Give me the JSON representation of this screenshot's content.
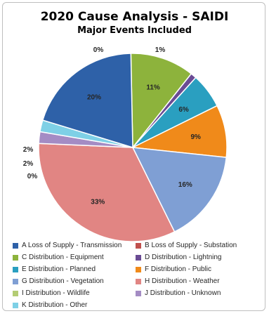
{
  "chart_data": {
    "type": "pie",
    "title": "2020 Cause Analysis - SAIDI",
    "subtitle": "Major Events Included",
    "legend_position": "bottom",
    "slices": [
      {
        "label": "A Loss of Supply - Transmission",
        "value": 20,
        "display": "20%",
        "color": "#2e61a8"
      },
      {
        "label": "B Loss of Supply - Substation",
        "value": 0,
        "display": "0%",
        "color": "#c0504d"
      },
      {
        "label": "C Distribution - Equipment",
        "value": 11,
        "display": "11%",
        "color": "#8db33c"
      },
      {
        "label": "D Distribution - Lightning",
        "value": 1,
        "display": "1%",
        "color": "#6a4b94"
      },
      {
        "label": "E Distribution - Planned",
        "value": 6,
        "display": "6%",
        "color": "#2a9fc0"
      },
      {
        "label": "F Distribution - Public",
        "value": 9,
        "display": "9%",
        "color": "#f08a1a"
      },
      {
        "label": "G Distribution - Vegetation",
        "value": 16,
        "display": "16%",
        "color": "#7f9fd4"
      },
      {
        "label": "H Distribution - Weather",
        "value": 33,
        "display": "33%",
        "color": "#e18583"
      },
      {
        "label": "I Distribution - Wildlife",
        "value": 0,
        "display": "0%",
        "color": "#b4cc74"
      },
      {
        "label": "J Distribution - Unknown",
        "value": 2,
        "display": "2%",
        "color": "#a48cc4"
      },
      {
        "label": "K Distribution - Other",
        "value": 2,
        "display": "2%",
        "color": "#7ed0e6"
      }
    ]
  }
}
